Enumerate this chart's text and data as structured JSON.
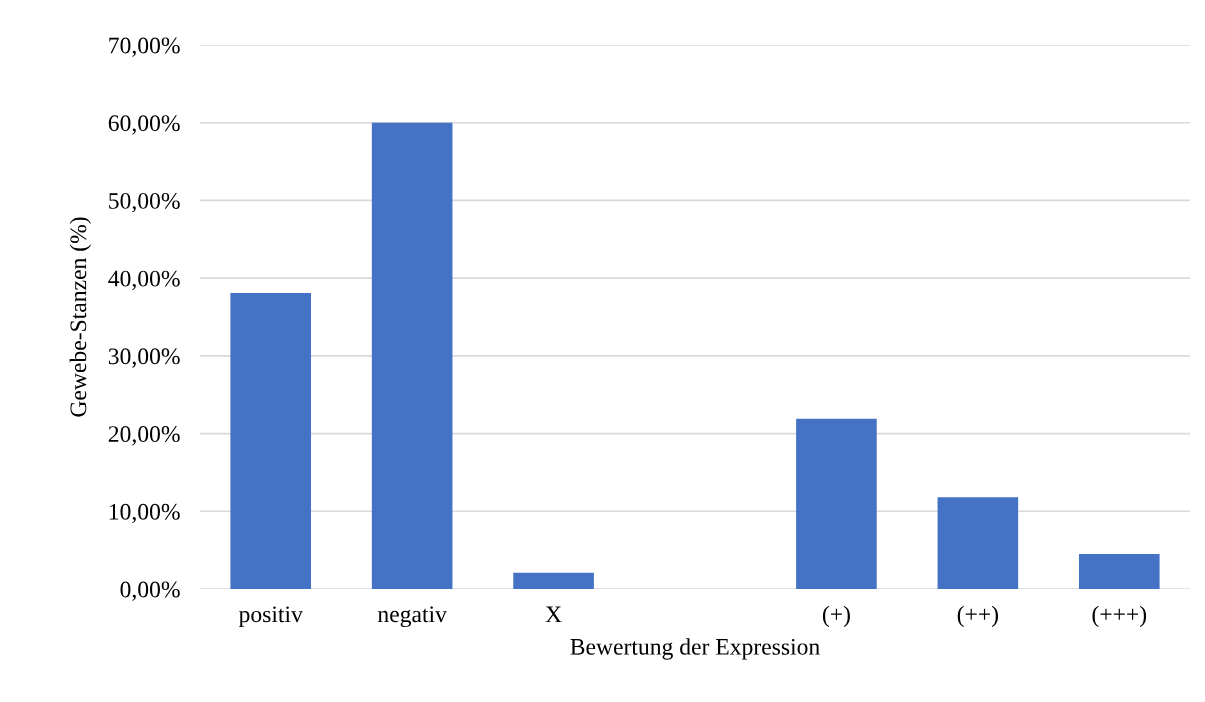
{
  "chart_data": {
    "type": "bar",
    "xlabel": "Bewertung der Expression",
    "ylabel": "Gewebe-Stanzen (%)",
    "categories": [
      "positiv",
      "negativ",
      "X",
      null,
      "(+)",
      "(++)",
      "(+++)"
    ],
    "values": [
      38.1,
      60.0,
      2.1,
      null,
      21.9,
      11.8,
      4.5
    ],
    "color": "#4472c4",
    "ylim": [
      0,
      70
    ],
    "yticks": [
      {
        "value": 0,
        "label": "0,00%"
      },
      {
        "value": 10,
        "label": "10,00%"
      },
      {
        "value": 20,
        "label": "20,00%"
      },
      {
        "value": 30,
        "label": "30,00%"
      },
      {
        "value": 40,
        "label": "40,00%"
      },
      {
        "value": 50,
        "label": "50,00%"
      },
      {
        "value": 60,
        "label": "60,00%"
      },
      {
        "value": 70,
        "label": "70,00%"
      }
    ],
    "grid": "y",
    "legend": false
  }
}
